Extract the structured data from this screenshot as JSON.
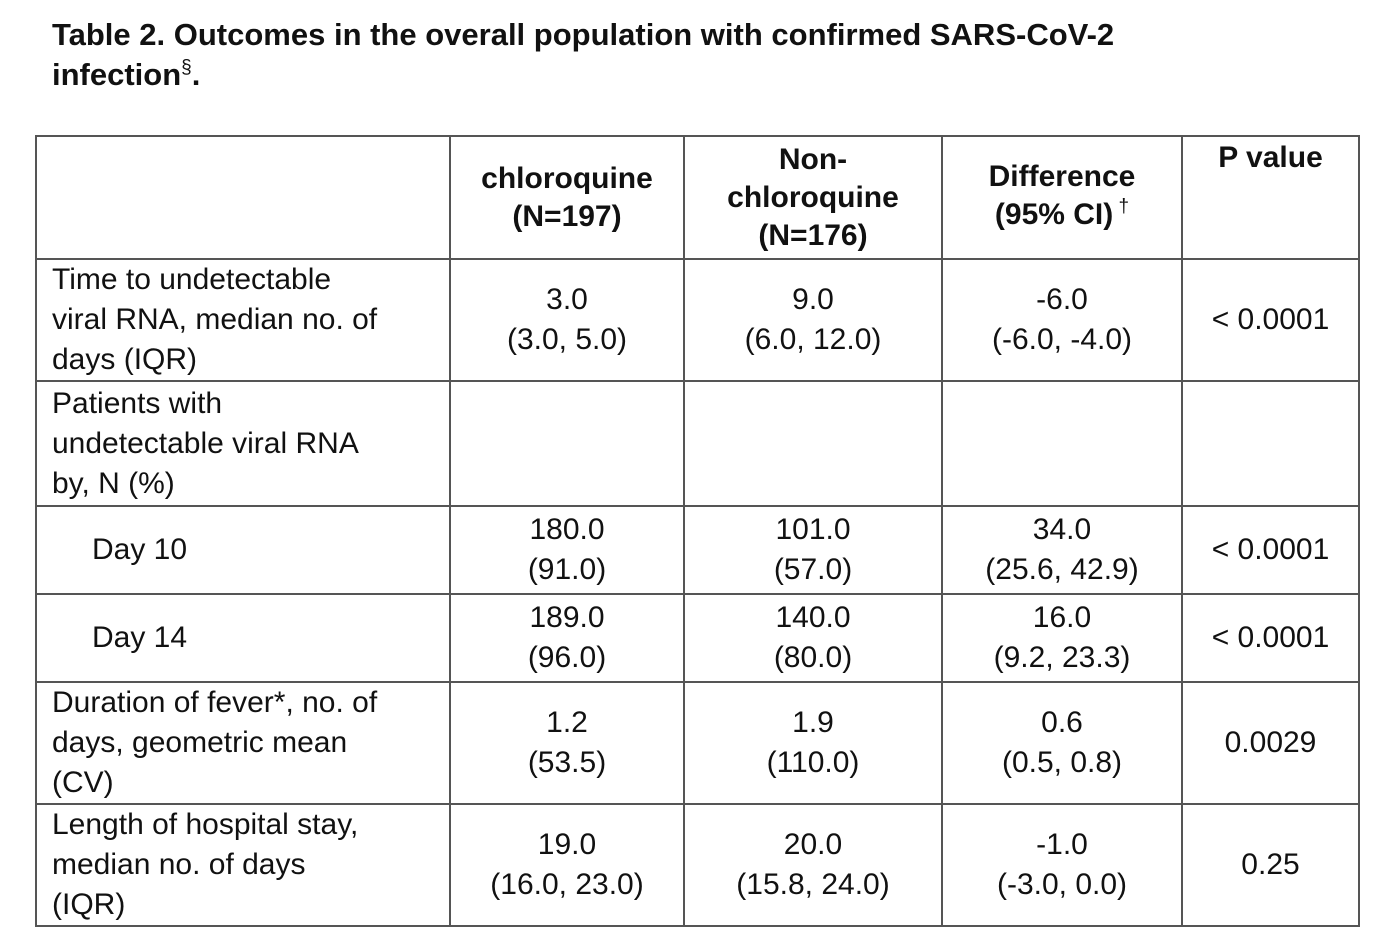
{
  "title": {
    "lines": [
      "Table 2. Outcomes in the overall population with confirmed SARS-CoV-2",
      "infection"
    ],
    "sup": "§",
    "end": "."
  },
  "table": {
    "header": [
      {
        "lines": [
          "chloroquine",
          "(N=197)"
        ]
      },
      {
        "lines": [
          "Non-",
          "chloroquine",
          "(N=176)"
        ]
      },
      {
        "lines": [
          "Difference",
          "(95% CI)"
        ],
        "sup": "†"
      },
      {
        "lines": [
          "P value"
        ],
        "valign": "top"
      }
    ],
    "rows": [
      {
        "label": [
          "Time to undetectable",
          "viral RNA, median no. of",
          "days (IQR)"
        ],
        "cells": [
          [
            "3.0",
            "(3.0, 5.0)"
          ],
          [
            "9.0",
            "(6.0, 12.0)"
          ],
          [
            "-6.0",
            "(-6.0, -4.0)"
          ],
          [
            "< 0.0001"
          ]
        ]
      },
      {
        "label": [
          "Patients with",
          "undetectable viral RNA",
          "by, N (%)"
        ],
        "cells": []
      },
      {
        "label": [
          "Day 10"
        ],
        "indent": true,
        "cells": [
          [
            "180.0",
            "(91.0)"
          ],
          [
            "101.0",
            "(57.0)"
          ],
          [
            "34.0",
            "(25.6, 42.9)"
          ],
          [
            "< 0.0001"
          ]
        ]
      },
      {
        "label": [
          "Day 14"
        ],
        "indent": true,
        "cells": [
          [
            "189.0",
            "(96.0)"
          ],
          [
            "140.0",
            "(80.0)"
          ],
          [
            "16.0",
            "(9.2, 23.3)"
          ],
          [
            "< 0.0001"
          ]
        ]
      },
      {
        "label": [
          "Duration of fever*, no. of",
          "days, geometric mean",
          "(CV)"
        ],
        "cells": [
          [
            "1.2",
            "(53.5)"
          ],
          [
            "1.9",
            "(110.0)"
          ],
          [
            "0.6",
            "(0.5, 0.8)"
          ],
          [
            "0.0029"
          ]
        ]
      },
      {
        "label": [
          "Length of hospital stay,",
          "median no. of days",
          "(IQR)"
        ],
        "cells": [
          [
            "19.0",
            "(16.0, 23.0)"
          ],
          [
            "20.0",
            "(15.8, 24.0)"
          ],
          [
            "-1.0",
            "(-3.0, 0.0)"
          ],
          [
            "0.25"
          ]
        ]
      }
    ]
  }
}
